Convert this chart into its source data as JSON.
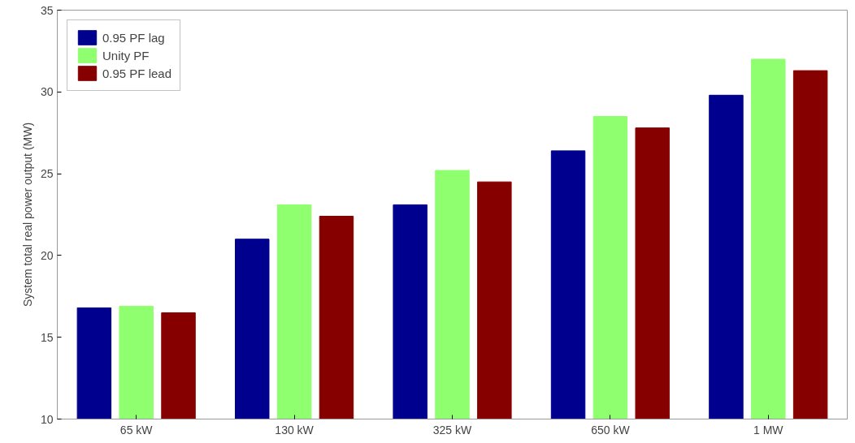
{
  "chart_data": {
    "type": "bar",
    "ylabel": "System total real power output (MW)",
    "categories": [
      "65 kW",
      "130 kW",
      "325 kW",
      "650 kW",
      "1 MW"
    ],
    "series": [
      {
        "name": "0.95 PF lag",
        "color": "#00008f",
        "values": [
          16.8,
          21.0,
          23.1,
          26.4,
          29.8
        ]
      },
      {
        "name": "Unity PF",
        "color": "#8fff6f",
        "values": [
          16.9,
          23.1,
          25.2,
          28.5,
          32.0
        ]
      },
      {
        "name": "0.95 PF lead",
        "color": "#870000",
        "values": [
          16.5,
          22.4,
          24.5,
          27.8,
          31.3
        ]
      }
    ],
    "ylim": [
      10,
      35
    ],
    "yticks": [
      10,
      15,
      20,
      25,
      30,
      35
    ],
    "grid": false,
    "legend": "top left"
  }
}
